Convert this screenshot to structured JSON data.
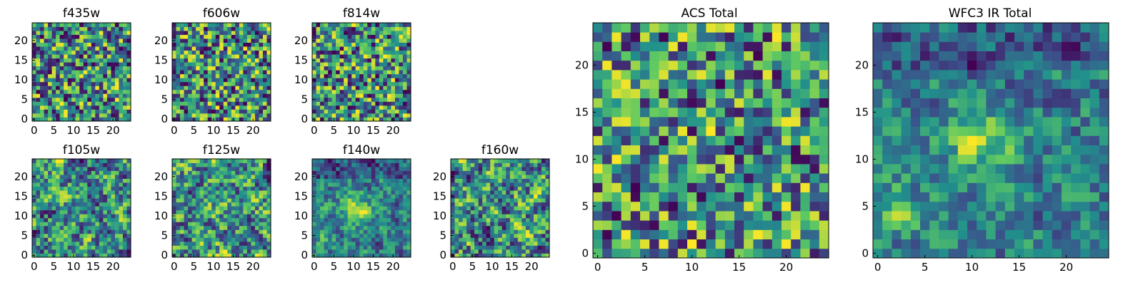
{
  "colormap": [
    "#440154",
    "#3b528b",
    "#21918c",
    "#5ec962",
    "#fde725"
  ],
  "chart_data": [
    {
      "id": "f435w",
      "type": "heatmap",
      "title": "f435w",
      "grid_size": 25,
      "x_ticks": [
        0,
        5,
        10,
        15,
        20
      ],
      "y_ticks": [
        0,
        5,
        10,
        15,
        20
      ],
      "xlim": [
        0,
        24
      ],
      "ylim": [
        0,
        24
      ],
      "grid": false,
      "pattern": "noise",
      "seed": 11
    },
    {
      "id": "f606w",
      "type": "heatmap",
      "title": "f606w",
      "grid_size": 25,
      "x_ticks": [
        0,
        5,
        10,
        15,
        20
      ],
      "y_ticks": [
        0,
        5,
        10,
        15,
        20
      ],
      "xlim": [
        0,
        24
      ],
      "ylim": [
        0,
        24
      ],
      "grid": false,
      "pattern": "noise",
      "seed": 23
    },
    {
      "id": "f814w",
      "type": "heatmap",
      "title": "f814w",
      "grid_size": 25,
      "x_ticks": [
        0,
        5,
        10,
        15,
        20
      ],
      "y_ticks": [
        0,
        5,
        10,
        15,
        20
      ],
      "xlim": [
        0,
        24
      ],
      "ylim": [
        0,
        24
      ],
      "grid": false,
      "pattern": "noise",
      "seed": 37
    },
    {
      "id": "f105w",
      "type": "heatmap",
      "title": "f105w",
      "grid_size": 25,
      "x_ticks": [
        0,
        5,
        10,
        15,
        20
      ],
      "y_ticks": [
        0,
        5,
        10,
        15,
        20
      ],
      "xlim": [
        0,
        24
      ],
      "ylim": [
        0,
        24
      ],
      "grid": false,
      "pattern": "smooth",
      "seed": 41
    },
    {
      "id": "f125w",
      "type": "heatmap",
      "title": "f125w",
      "grid_size": 25,
      "x_ticks": [
        0,
        5,
        10,
        15,
        20
      ],
      "y_ticks": [
        0,
        5,
        10,
        15,
        20
      ],
      "xlim": [
        0,
        24
      ],
      "ylim": [
        0,
        24
      ],
      "grid": false,
      "pattern": "smooth",
      "seed": 53
    },
    {
      "id": "f140w",
      "type": "heatmap",
      "title": "f140w",
      "grid_size": 25,
      "x_ticks": [
        0,
        5,
        10,
        15,
        20
      ],
      "y_ticks": [
        0,
        5,
        10,
        15,
        20
      ],
      "xlim": [
        0,
        24
      ],
      "ylim": [
        0,
        24
      ],
      "grid": false,
      "pattern": "blob",
      "seed": 67
    },
    {
      "id": "f160w",
      "type": "heatmap",
      "title": "f160w",
      "grid_size": 25,
      "x_ticks": [
        0,
        5,
        10,
        15,
        20
      ],
      "y_ticks": [
        0,
        5,
        10,
        15,
        20
      ],
      "xlim": [
        0,
        24
      ],
      "ylim": [
        0,
        24
      ],
      "grid": false,
      "pattern": "smooth",
      "seed": 79
    },
    {
      "id": "acs-total",
      "type": "heatmap",
      "title": "ACS Total",
      "grid_size": 25,
      "x_ticks": [
        0,
        5,
        10,
        15,
        20
      ],
      "y_ticks": [
        0,
        5,
        10,
        15,
        20
      ],
      "xlim": [
        0,
        24
      ],
      "ylim": [
        0,
        24
      ],
      "grid": false,
      "pattern": "noise",
      "seed": 83
    },
    {
      "id": "wfc3-ir-total",
      "type": "heatmap",
      "title": "WFC3 IR Total",
      "grid_size": 25,
      "x_ticks": [
        0,
        5,
        10,
        15,
        20
      ],
      "y_ticks": [
        0,
        5,
        10,
        15,
        20
      ],
      "xlim": [
        0,
        24
      ],
      "ylim": [
        0,
        24
      ],
      "grid": false,
      "pattern": "blob",
      "seed": 97
    }
  ]
}
